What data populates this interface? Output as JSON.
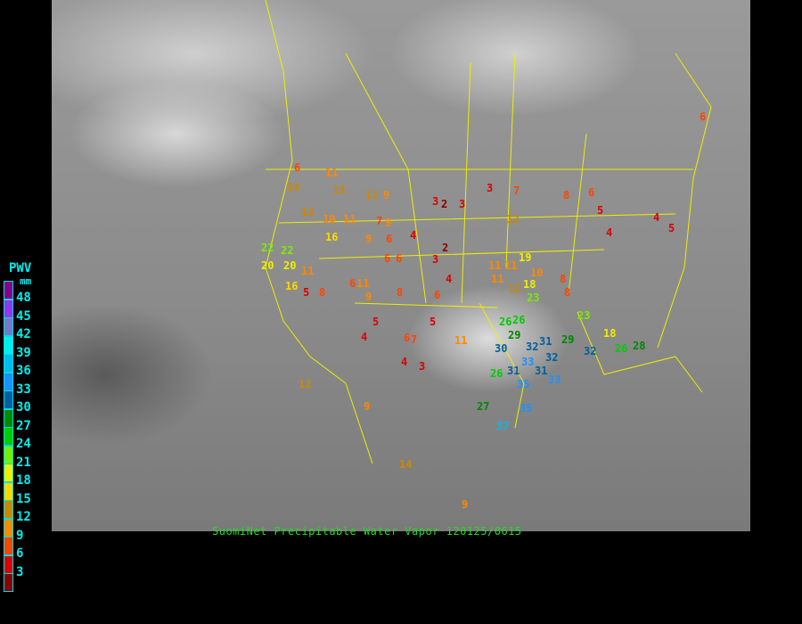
{
  "title": "SuomiNet Precipitable Water Vapor 120125/0615",
  "legend": {
    "title": "PWV",
    "unit": "mm",
    "labels": [
      "48",
      "45",
      "42",
      "39",
      "36",
      "33",
      "30",
      "27",
      "24",
      "21",
      "18",
      "15",
      "12",
      "9",
      "6",
      "3"
    ],
    "colors": [
      "#880088",
      "#9933ee",
      "#7777cc",
      "#00eeee",
      "#00bbee",
      "#1e90ff",
      "#005f9f",
      "#008800",
      "#00cc00",
      "#77ee00",
      "#eeee00",
      "#ffd700",
      "#cc8800",
      "#ff8800",
      "#ff4400",
      "#dd0000",
      "#8b0000"
    ]
  },
  "stations": [
    "6",
    "14",
    "11",
    "9",
    "13",
    "12",
    "9",
    "16",
    "10",
    "11",
    "12",
    "9",
    "6",
    "7",
    "6",
    "3",
    "2",
    "3",
    "3",
    "7",
    "4",
    "11",
    "12",
    "8",
    "6",
    "5",
    "4",
    "4",
    "6",
    "5",
    "22",
    "22",
    "20",
    "20",
    "11",
    "16",
    "5",
    "8",
    "11",
    "6",
    "3",
    "2",
    "4",
    "6",
    "11",
    "12",
    "10",
    "18",
    "19",
    "8",
    "8",
    "26",
    "26",
    "29",
    "30",
    "31",
    "32",
    "33",
    "26",
    "33",
    "35",
    "27",
    "37",
    "35",
    "31",
    "32",
    "29",
    "32",
    "18",
    "26",
    "28",
    "5",
    "4",
    "5",
    "6",
    "11",
    "4",
    "3",
    "9",
    "14",
    "9",
    "6",
    "9",
    "8",
    "7",
    "12",
    "11",
    "23",
    "31",
    "23"
  ]
}
